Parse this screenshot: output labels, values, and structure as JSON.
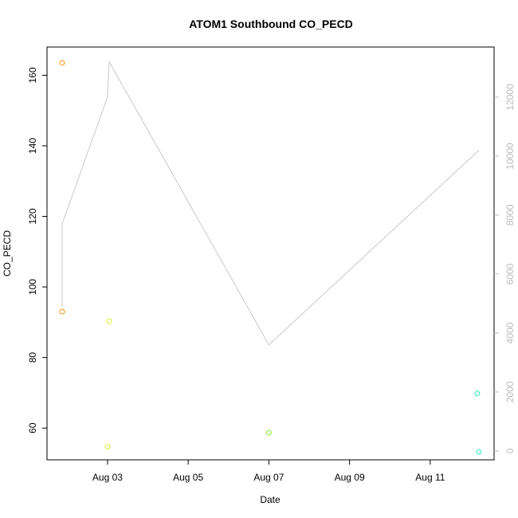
{
  "chart_data": {
    "type": "scatter",
    "title": "ATOM1 Southbound CO_PECD",
    "xlabel": "Date",
    "ylabel": "CO_PECD",
    "x_ticks": [
      {
        "date": "2023-08-03",
        "label": "Aug 03"
      },
      {
        "date": "2023-08-05",
        "label": "Aug 05"
      },
      {
        "date": "2023-08-07",
        "label": "Aug 07"
      },
      {
        "date": "2023-08-09",
        "label": "Aug 09"
      },
      {
        "date": "2023-08-11",
        "label": "Aug 11"
      }
    ],
    "xlim": [
      "2023-08-01T12:00",
      "2023-08-12T14:00"
    ],
    "ylim": [
      51,
      168
    ],
    "y_ticks": [
      60,
      80,
      100,
      120,
      140,
      160
    ],
    "y2lim": [
      -300,
      13700
    ],
    "y2_ticks": [
      0,
      2000,
      4000,
      6000,
      8000,
      10000,
      12000
    ],
    "grid": false,
    "points": [
      {
        "x": "2023-08-01T21:00",
        "y": 163.5,
        "color": "#FF8C00"
      },
      {
        "x": "2023-08-01T21:00",
        "y": 93.0,
        "color": "#FF8C00"
      },
      {
        "x": "2023-08-03T01:00",
        "y": 90.3,
        "color": "#DDEE33"
      },
      {
        "x": "2023-08-03T00:00",
        "y": 54.7,
        "color": "#DDEE33"
      },
      {
        "x": "2023-08-07T00:00",
        "y": 58.7,
        "color": "#88EE22"
      },
      {
        "x": "2023-08-12T04:00",
        "y": 69.8,
        "color": "#22EEBB"
      },
      {
        "x": "2023-08-12T05:00",
        "y": 53.3,
        "color": "#22EEBB"
      }
    ],
    "secondary_series": {
      "color": "#C8C8C8",
      "points": [
        {
          "x": "2023-08-01T21:00",
          "y": 4900
        },
        {
          "x": "2023-08-01T21:00",
          "y": 7700
        },
        {
          "x": "2023-08-03T00:00",
          "y": 12000
        },
        {
          "x": "2023-08-03T01:00",
          "y": 13200
        },
        {
          "x": "2023-08-07T00:00",
          "y": 3600
        },
        {
          "x": "2023-08-12T05:00",
          "y": 10200
        }
      ]
    }
  }
}
